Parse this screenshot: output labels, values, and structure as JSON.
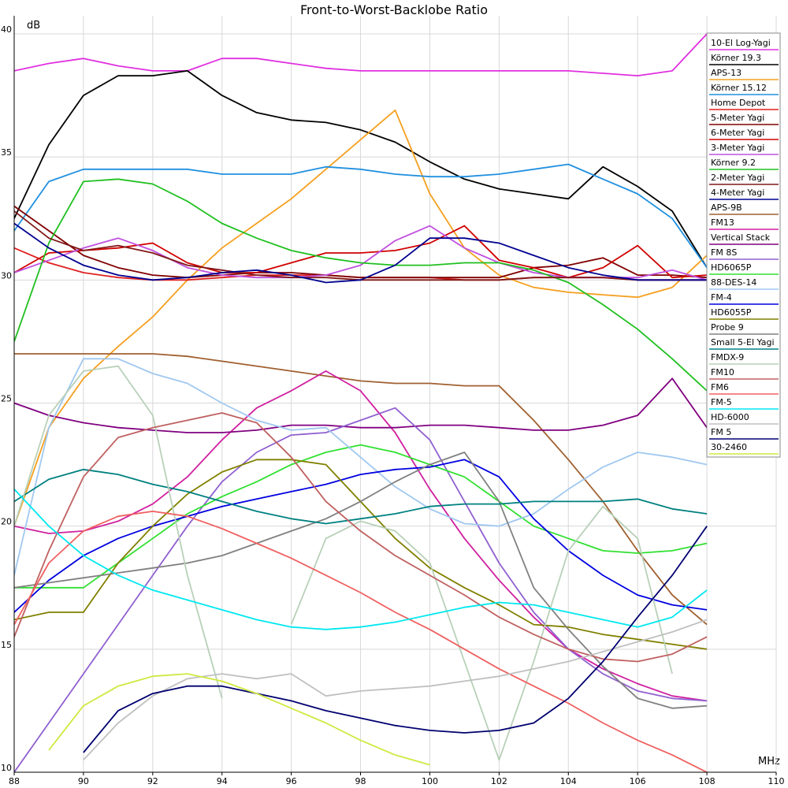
{
  "chart_data": {
    "type": "line",
    "title": "Front-to-Worst-Backlobe Ratio",
    "y_label": "dB",
    "x_label": "MHz",
    "xlim": [
      88,
      110
    ],
    "xticks": [
      88,
      90,
      92,
      94,
      96,
      98,
      100,
      102,
      104,
      106,
      108,
      110
    ],
    "ylim": [
      10,
      40
    ],
    "yticks": [
      10,
      15,
      20,
      25,
      30,
      35,
      40
    ],
    "grid": true,
    "legend": "upper right",
    "x": [
      88,
      89,
      90,
      91,
      92,
      93,
      94,
      95,
      96,
      97,
      98,
      99,
      100,
      101,
      102,
      103,
      104,
      105,
      106,
      107,
      108
    ],
    "series": [
      {
        "name": "10-El Log-Yagi",
        "color": "#e030e0",
        "values": [
          38.5,
          38.8,
          39.0,
          38.7,
          38.5,
          38.5,
          39.0,
          39.0,
          38.8,
          38.6,
          38.5,
          38.5,
          38.5,
          38.5,
          38.5,
          38.5,
          38.5,
          38.4,
          38.3,
          38.5,
          40.0
        ]
      },
      {
        "name": "Körner 19.3",
        "color": "#000000",
        "values": [
          32.5,
          35.5,
          37.5,
          38.3,
          38.3,
          38.5,
          37.5,
          36.8,
          36.5,
          36.4,
          36.1,
          35.6,
          34.8,
          34.1,
          33.7,
          33.5,
          33.3,
          34.6,
          33.8,
          32.8,
          30.5
        ]
      },
      {
        "name": "APS-13",
        "color": "#f5a020",
        "values": [
          20.0,
          24.0,
          26.0,
          27.3,
          28.5,
          30.0,
          31.3,
          32.3,
          33.3,
          34.5,
          35.7,
          36.9,
          33.5,
          31.3,
          30.2,
          29.7,
          29.5,
          29.4,
          29.3,
          29.7,
          31.0
        ]
      },
      {
        "name": "Körner 15.12",
        "color": "#2090e0",
        "values": [
          32.0,
          34.0,
          34.5,
          34.5,
          34.5,
          34.5,
          34.3,
          34.3,
          34.3,
          34.6,
          34.5,
          34.3,
          34.2,
          34.2,
          34.3,
          34.5,
          34.7,
          34.1,
          33.5,
          32.5,
          30.5
        ]
      },
      {
        "name": "Home Depot",
        "color": "#e02020",
        "values": [
          31.3,
          30.7,
          30.3,
          30.1,
          30.0,
          30.0,
          30.1,
          30.2,
          30.2,
          30.2,
          30.1,
          30.1,
          30.1,
          30.0,
          30.0,
          30.1,
          30.1,
          30.1,
          30.0,
          30.0,
          30.0
        ]
      },
      {
        "name": "5-Meter Yagi",
        "color": "#800000",
        "values": [
          33.0,
          32.0,
          31.0,
          30.5,
          30.2,
          30.1,
          30.2,
          30.3,
          30.3,
          30.2,
          30.1,
          30.1,
          30.1,
          30.1,
          30.1,
          30.5,
          30.6,
          30.9,
          30.2,
          30.2,
          30.1
        ]
      },
      {
        "name": "6-Meter Yagi",
        "color": "#d00000",
        "values": [
          30.3,
          31.1,
          31.2,
          31.3,
          31.5,
          30.7,
          30.3,
          30.3,
          30.7,
          31.1,
          31.1,
          31.2,
          31.5,
          32.2,
          30.8,
          30.5,
          30.1,
          30.5,
          31.4,
          30.1,
          30.2
        ]
      },
      {
        "name": "3-Meter Yagi",
        "color": "#c050e0",
        "values": [
          30.3,
          30.8,
          31.3,
          31.7,
          31.2,
          30.5,
          30.2,
          30.1,
          30.1,
          30.2,
          30.6,
          31.6,
          32.2,
          31.3,
          30.7,
          30.3,
          30.1,
          30.1,
          30.1,
          30.4,
          30.0
        ]
      },
      {
        "name": "Körner 9.2",
        "color": "#20c020",
        "values": [
          27.5,
          31.5,
          34.0,
          34.1,
          33.9,
          33.2,
          32.3,
          31.7,
          31.2,
          30.9,
          30.7,
          30.6,
          30.6,
          30.7,
          30.7,
          30.4,
          29.9,
          29.0,
          28.0,
          26.8,
          25.5
        ]
      },
      {
        "name": "2-Meter Yagi",
        "color": "#801818",
        "values": [
          32.8,
          31.7,
          31.2,
          31.4,
          31.1,
          30.6,
          30.4,
          30.2,
          30.1,
          30.1,
          30.0,
          30.0,
          30.0,
          30.0,
          30.0,
          30.1,
          30.1,
          30.1,
          30.0,
          30.0,
          30.0
        ]
      },
      {
        "name": "4-Meter Yagi",
        "color": "#000090",
        "values": [
          32.3,
          31.3,
          30.6,
          30.2,
          30.0,
          30.1,
          30.3,
          30.4,
          30.2,
          29.9,
          30.0,
          30.6,
          31.7,
          31.7,
          31.5,
          31.0,
          30.5,
          30.2,
          30.0,
          30.0,
          30.0
        ]
      },
      {
        "name": "APS-9B",
        "color": "#a06030",
        "values": [
          27.0,
          27.0,
          27.0,
          27.0,
          27.0,
          26.9,
          26.7,
          26.5,
          26.3,
          26.1,
          25.9,
          25.8,
          25.8,
          25.7,
          25.7,
          24.3,
          22.7,
          21.0,
          19.0,
          17.2,
          16.0
        ]
      },
      {
        "name": "FM13",
        "color": "#d020a0",
        "values": [
          20.0,
          19.7,
          19.8,
          20.2,
          20.9,
          22.0,
          23.5,
          24.8,
          25.5,
          26.3,
          25.5,
          23.8,
          21.5,
          19.5,
          17.8,
          16.3,
          15.0,
          14.2,
          13.6,
          13.1,
          12.9
        ]
      },
      {
        "name": "Vertical Stack",
        "color": "#800080",
        "values": [
          25.0,
          24.5,
          24.2,
          24.0,
          23.9,
          23.8,
          23.8,
          23.9,
          24.1,
          24.1,
          24.0,
          24.0,
          24.1,
          24.1,
          24.0,
          23.9,
          23.9,
          24.1,
          24.5,
          26.0,
          24.0
        ]
      },
      {
        "name": "FM 8S",
        "color": "#9060d0",
        "values": [
          10.0,
          12.0,
          14.0,
          16.0,
          18.0,
          20.0,
          21.8,
          23.0,
          23.7,
          23.8,
          24.3,
          24.8,
          23.5,
          21.0,
          18.5,
          16.5,
          15.0,
          14.0,
          13.3,
          13.0,
          12.9
        ]
      },
      {
        "name": "HD6065P",
        "color": "#30e030",
        "values": [
          17.5,
          17.5,
          17.5,
          18.5,
          19.5,
          20.5,
          21.2,
          21.8,
          22.5,
          23.0,
          23.3,
          23.0,
          22.5,
          22.0,
          21.0,
          20.0,
          19.5,
          19.0,
          18.9,
          19.0,
          19.3
        ]
      },
      {
        "name": "88-DES-14",
        "color": "#a0c8f0",
        "values": [
          18.0,
          24.0,
          26.8,
          26.8,
          26.2,
          25.8,
          25.0,
          24.3,
          23.9,
          24.0,
          22.8,
          21.6,
          20.7,
          20.1,
          20.0,
          20.5,
          21.5,
          22.4,
          23.0,
          22.8,
          22.5
        ]
      },
      {
        "name": "FM-4",
        "color": "#0000e0",
        "values": [
          16.5,
          17.8,
          18.8,
          19.5,
          20.0,
          20.4,
          20.8,
          21.1,
          21.4,
          21.7,
          22.1,
          22.3,
          22.4,
          22.7,
          22.0,
          20.3,
          19.0,
          18.0,
          17.2,
          16.8,
          16.6
        ]
      },
      {
        "name": "HD6055P",
        "color": "#808000",
        "values": [
          16.2,
          16.5,
          16.5,
          18.5,
          20.0,
          21.3,
          22.2,
          22.7,
          22.7,
          22.5,
          21.0,
          19.5,
          18.3,
          17.5,
          16.8,
          16.0,
          15.9,
          15.6,
          15.4,
          15.2,
          15.0
        ]
      },
      {
        "name": "Probe 9",
        "color": "#808080",
        "values": [
          17.5,
          17.7,
          17.9,
          18.1,
          18.3,
          18.5,
          18.8,
          19.3,
          19.8,
          20.3,
          21.0,
          21.8,
          22.5,
          23.0,
          21.0,
          17.5,
          15.8,
          14.3,
          13.0,
          12.6,
          12.7
        ]
      },
      {
        "name": "Small 5-El Yagi",
        "color": "#008080",
        "values": [
          21.0,
          21.9,
          22.3,
          22.1,
          21.7,
          21.4,
          21.0,
          20.6,
          20.3,
          20.1,
          20.3,
          20.5,
          20.8,
          20.9,
          20.9,
          21.0,
          21.0,
          21.0,
          21.1,
          20.7,
          20.5
        ]
      },
      {
        "name": "FMDX-9",
        "color": "#b8d0b8",
        "values": [
          20.0,
          24.5,
          26.3,
          26.5,
          24.5,
          18.0,
          13.0,
          null,
          16.0,
          19.5,
          20.2,
          19.8,
          18.5,
          14.5,
          10.5,
          14.5,
          19.0,
          20.8,
          19.5,
          14.0,
          null
        ]
      },
      {
        "name": "FM10",
        "color": "#c06060",
        "values": [
          15.5,
          19.0,
          22.0,
          23.6,
          24.0,
          24.3,
          24.6,
          24.2,
          22.8,
          21.0,
          19.8,
          18.8,
          18.0,
          17.2,
          16.3,
          15.6,
          15.0,
          14.6,
          14.5,
          14.8,
          15.5
        ]
      },
      {
        "name": "FM6",
        "color": "#f06060",
        "values": [
          16.0,
          18.5,
          19.8,
          20.4,
          20.6,
          20.4,
          19.9,
          19.3,
          18.7,
          18.0,
          17.3,
          16.5,
          15.8,
          15.0,
          14.2,
          13.5,
          12.8,
          12.0,
          11.3,
          10.7,
          10.0
        ]
      },
      {
        "name": "FM-5",
        "color": "#00e8f0",
        "values": [
          21.5,
          20.0,
          18.8,
          18.0,
          17.4,
          17.0,
          16.6,
          16.2,
          15.9,
          15.8,
          15.9,
          16.1,
          16.4,
          16.7,
          16.9,
          16.8,
          16.5,
          16.2,
          15.9,
          16.3,
          17.4
        ]
      },
      {
        "name": "HD-6000",
        "color": "#c0c0c0",
        "values": [
          null,
          null,
          10.5,
          12.0,
          13.1,
          13.8,
          14.0,
          13.8,
          14.0,
          13.1,
          13.3,
          13.4,
          13.5,
          13.7,
          13.9,
          14.2,
          14.5,
          14.9,
          15.3,
          15.7,
          16.2
        ]
      },
      {
        "name": "FM 5",
        "color": "#000070",
        "values": [
          null,
          null,
          10.8,
          12.5,
          13.2,
          13.5,
          13.5,
          13.2,
          12.9,
          12.5,
          12.2,
          11.9,
          11.7,
          11.6,
          11.7,
          12.0,
          13.0,
          14.5,
          16.3,
          18.0,
          20.0
        ]
      },
      {
        "name": "30-2460",
        "color": "#d0e840",
        "values": [
          null,
          10.9,
          12.7,
          13.5,
          13.9,
          14.0,
          13.7,
          13.2,
          12.6,
          12.0,
          11.3,
          10.7,
          10.3,
          null,
          null,
          null,
          null,
          null,
          null,
          null,
          null
        ]
      }
    ]
  }
}
